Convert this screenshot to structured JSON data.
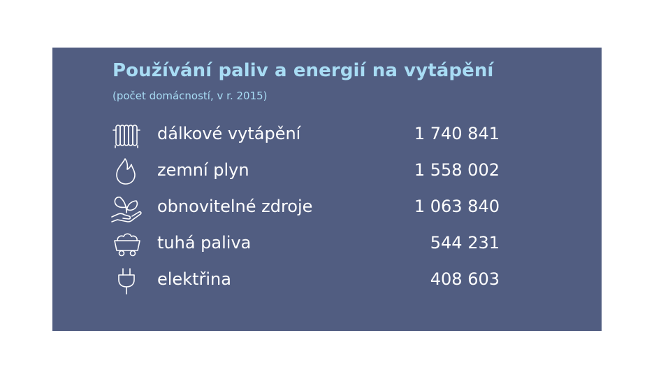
{
  "infographic": {
    "title": "Používání paliv a energií na vytápění",
    "subtitle": "(počet domácností, v r. 2015)",
    "colors": {
      "panel_background": "#515d81",
      "title": "#a8dcf4",
      "text": "#ffffff",
      "page_background": "#ffffff"
    },
    "rows": [
      {
        "icon": "radiator-icon",
        "label": "dálkové vytápění",
        "value": "1 740 841"
      },
      {
        "icon": "flame-icon",
        "label": "zemní plyn",
        "value": "1 558 002"
      },
      {
        "icon": "hand-plant-icon",
        "label": "obnovitelné zdroje",
        "value": "1 063 840"
      },
      {
        "icon": "coal-cart-icon",
        "label": "tuhá paliva",
        "value": "544 231"
      },
      {
        "icon": "plug-icon",
        "label": "elektřina",
        "value": "408 603"
      }
    ]
  }
}
